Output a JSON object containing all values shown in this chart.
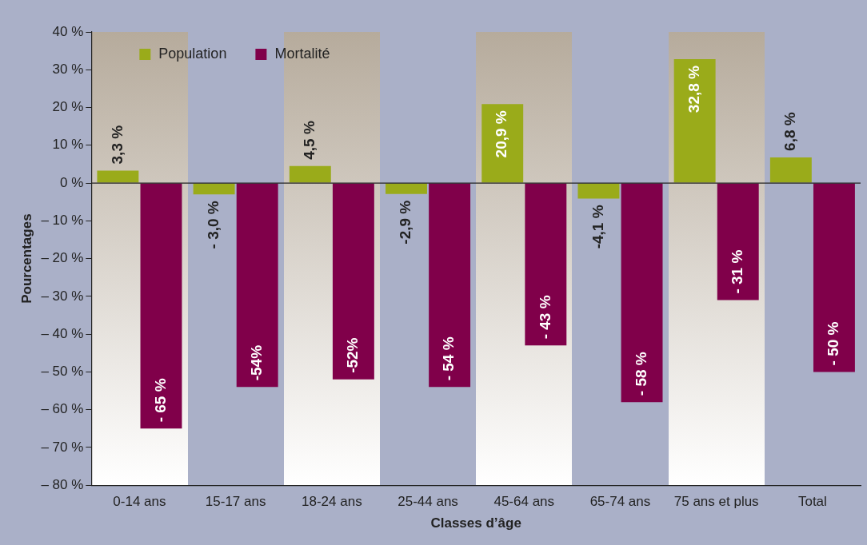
{
  "chart_data": {
    "type": "bar",
    "xlabel": "Classes d’âge",
    "ylabel": "Pourcentages",
    "categories": [
      "0-14 ans",
      "15-17 ans",
      "18-24 ans",
      "25-44 ans",
      "45-64 ans",
      "65-74 ans",
      "75 ans et plus",
      "Total"
    ],
    "series": [
      {
        "name": "Population",
        "color": "#9aab1a",
        "values": [
          3.3,
          -3.0,
          4.5,
          -2.9,
          20.9,
          -4.1,
          32.8,
          6.8
        ],
        "value_labels": [
          "3,3 %",
          "- 3,0 %",
          "4,5 %",
          "-2,9 %",
          "20,9 %",
          "-4,1 %",
          "32,8 %",
          "6,8 %"
        ]
      },
      {
        "name": "Mortalité",
        "color": "#80004a",
        "values": [
          -65,
          -54,
          -52,
          -54,
          -43,
          -58,
          -31,
          -50
        ],
        "value_labels": [
          "- 65 %",
          "-54%",
          "-52%",
          "- 54 %",
          "- 43 %",
          "- 58 %",
          "- 31 %",
          "- 50 %"
        ]
      }
    ],
    "ylim": [
      -80,
      40
    ],
    "yticks": [
      {
        "value": -80,
        "label": "– 80 %"
      },
      {
        "value": -70,
        "label": "– 70 %"
      },
      {
        "value": -60,
        "label": "– 60 %"
      },
      {
        "value": -50,
        "label": "– 50 %"
      },
      {
        "value": -40,
        "label": "– 40 %"
      },
      {
        "value": -30,
        "label": "– 30 %"
      },
      {
        "value": -20,
        "label": "– 20 %"
      },
      {
        "value": -10,
        "label": "– 10 %"
      },
      {
        "value": 0,
        "label": "0 %"
      },
      {
        "value": 10,
        "label": "10 %"
      },
      {
        "value": 20,
        "label": "20 %"
      },
      {
        "value": 30,
        "label": "30 %"
      },
      {
        "value": 40,
        "label": "40 %"
      }
    ],
    "ref_lines": [
      {
        "axis": "y",
        "value": 0
      }
    ],
    "grid": false,
    "legend": "top left"
  }
}
